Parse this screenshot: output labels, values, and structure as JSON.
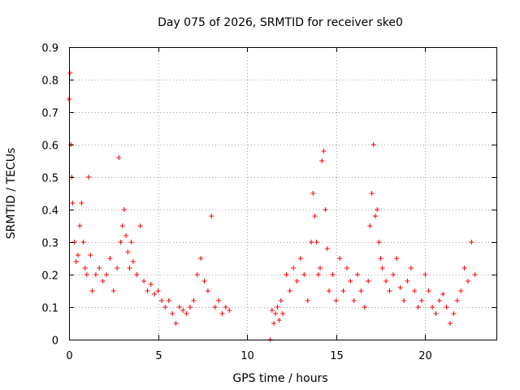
{
  "chart_data": {
    "type": "scatter",
    "title": "Day 075 of 2026, SRMTID for receiver ske0",
    "xlabel": "GPS time / hours",
    "ylabel": "SRMTID / TECUs",
    "xlim": [
      0,
      24
    ],
    "ylim": [
      0,
      0.9
    ],
    "xticks": [
      0,
      5,
      10,
      15,
      20
    ],
    "xtick_labels": [
      "0",
      "5",
      "10",
      "15",
      "20"
    ],
    "yticks": [
      0,
      0.1,
      0.2,
      0.3,
      0.4,
      0.5,
      0.6,
      0.7,
      0.8,
      0.9
    ],
    "ytick_labels": [
      "0",
      "0.1",
      "0.2",
      "0.3",
      "0.4",
      "0.5",
      "0.6",
      "0.7",
      "0.8",
      "0.9"
    ],
    "grid": true,
    "marker": "+",
    "color": "#ff0000",
    "series": [
      {
        "name": "SRMTID",
        "x": [
          0.0,
          0.05,
          0.1,
          0.15,
          0.2,
          0.3,
          0.4,
          0.5,
          0.6,
          0.7,
          0.8,
          0.9,
          1.0,
          1.1,
          1.2,
          1.3,
          1.5,
          1.7,
          1.9,
          2.1,
          2.3,
          2.5,
          2.7,
          2.8,
          2.9,
          3.0,
          3.1,
          3.2,
          3.3,
          3.4,
          3.5,
          3.6,
          3.8,
          4.0,
          4.2,
          4.4,
          4.6,
          4.8,
          5.0,
          5.2,
          5.4,
          5.6,
          5.8,
          6.0,
          6.2,
          6.4,
          6.6,
          6.8,
          7.0,
          7.2,
          7.4,
          7.6,
          7.8,
          8.0,
          8.2,
          8.4,
          8.6,
          8.8,
          9.0,
          11.3,
          11.4,
          11.5,
          11.6,
          11.7,
          11.8,
          11.9,
          12.0,
          12.2,
          12.4,
          12.6,
          12.8,
          13.0,
          13.2,
          13.4,
          13.6,
          13.7,
          13.8,
          13.9,
          14.0,
          14.1,
          14.2,
          14.3,
          14.4,
          14.5,
          14.6,
          14.8,
          15.0,
          15.2,
          15.4,
          15.6,
          15.8,
          16.0,
          16.2,
          16.4,
          16.6,
          16.8,
          16.9,
          17.0,
          17.1,
          17.2,
          17.3,
          17.4,
          17.5,
          17.6,
          17.8,
          18.0,
          18.2,
          18.4,
          18.6,
          18.8,
          19.0,
          19.2,
          19.4,
          19.6,
          19.8,
          20.0,
          20.2,
          20.4,
          20.6,
          20.8,
          21.0,
          21.2,
          21.4,
          21.6,
          21.8,
          22.0,
          22.2,
          22.4,
          22.6,
          22.8
        ],
        "y": [
          0.74,
          0.82,
          0.6,
          0.5,
          0.42,
          0.3,
          0.24,
          0.26,
          0.35,
          0.42,
          0.3,
          0.22,
          0.2,
          0.5,
          0.26,
          0.15,
          0.2,
          0.22,
          0.18,
          0.2,
          0.25,
          0.15,
          0.22,
          0.56,
          0.3,
          0.35,
          0.4,
          0.32,
          0.27,
          0.22,
          0.3,
          0.24,
          0.2,
          0.35,
          0.18,
          0.15,
          0.17,
          0.14,
          0.15,
          0.12,
          0.1,
          0.12,
          0.08,
          0.05,
          0.1,
          0.09,
          0.08,
          0.1,
          0.12,
          0.2,
          0.25,
          0.18,
          0.15,
          0.38,
          0.1,
          0.12,
          0.08,
          0.1,
          0.09,
          0.0,
          0.09,
          0.05,
          0.08,
          0.1,
          0.06,
          0.12,
          0.08,
          0.2,
          0.15,
          0.22,
          0.18,
          0.25,
          0.2,
          0.12,
          0.3,
          0.45,
          0.38,
          0.3,
          0.2,
          0.22,
          0.55,
          0.58,
          0.4,
          0.28,
          0.15,
          0.2,
          0.12,
          0.25,
          0.15,
          0.22,
          0.18,
          0.12,
          0.2,
          0.15,
          0.1,
          0.18,
          0.35,
          0.45,
          0.6,
          0.38,
          0.4,
          0.3,
          0.25,
          0.22,
          0.18,
          0.15,
          0.2,
          0.25,
          0.16,
          0.12,
          0.18,
          0.22,
          0.15,
          0.1,
          0.12,
          0.2,
          0.15,
          0.1,
          0.08,
          0.12,
          0.14,
          0.1,
          0.05,
          0.08,
          0.12,
          0.15,
          0.22,
          0.18,
          0.3,
          0.2
        ]
      }
    ]
  }
}
